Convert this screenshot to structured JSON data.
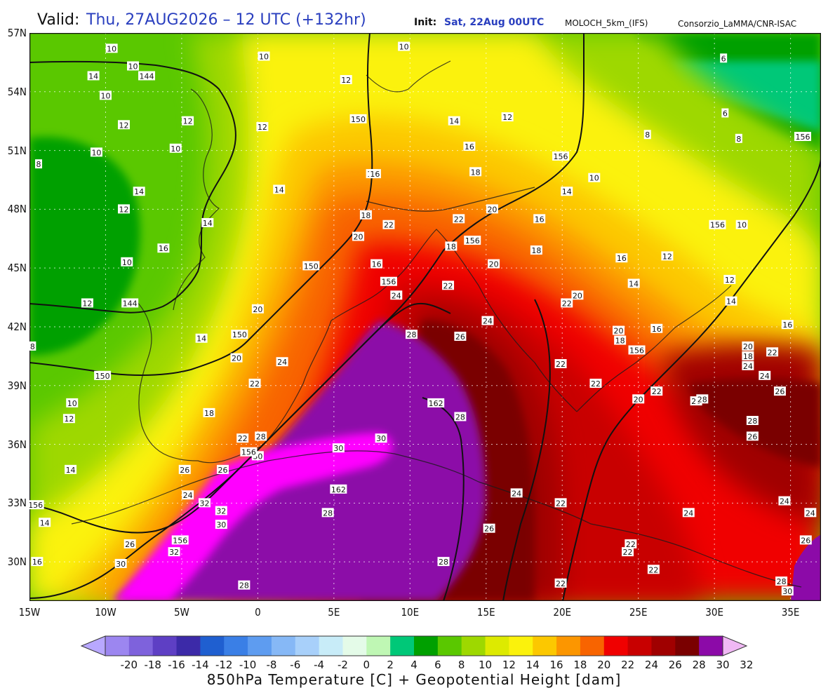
{
  "header": {
    "valid_label": "Valid:",
    "valid_value": "Thu, 27AUG2026 – 12 UTC (+132hr)",
    "init_label": "Init:",
    "init_value": "Sat, 22Aug 00UTC",
    "model": "MOLOCH_5km_(IFS)",
    "credit": "Consorzio_LaMMA/CNR-ISAC"
  },
  "axes": {
    "lat_labels": [
      "57N",
      "54N",
      "51N",
      "48N",
      "45N",
      "42N",
      "39N",
      "36N",
      "33N",
      "30N"
    ],
    "lon_labels": [
      "15W",
      "10W",
      "5W",
      "0",
      "5E",
      "10E",
      "15E",
      "20E",
      "25E",
      "30E",
      "35E"
    ],
    "lat_range": [
      28,
      57
    ],
    "lon_range": [
      -15,
      37
    ]
  },
  "colorbar": {
    "labels": [
      "-20",
      "-18",
      "-16",
      "-14",
      "-12",
      "-10",
      "-8",
      "-6",
      "-4",
      "-2",
      "0",
      "2",
      "4",
      "6",
      "8",
      "10",
      "12",
      "14",
      "16",
      "18",
      "20",
      "22",
      "24",
      "26",
      "28",
      "30",
      "32"
    ],
    "colors": [
      "#b8a8ff",
      "#9c86f0",
      "#7e62dc",
      "#5e3fc4",
      "#3c2aa8",
      "#1f5fd0",
      "#3a7fe6",
      "#5e9cf0",
      "#86b8f6",
      "#a8d0fa",
      "#c8ecf8",
      "#e4fbe8",
      "#bff7b4",
      "#00c878",
      "#00a000",
      "#5ac800",
      "#9ed800",
      "#ddea00",
      "#fbf20c",
      "#fcc800",
      "#fc9600",
      "#f86400",
      "#f00000",
      "#c80000",
      "#a00000",
      "#7a0000",
      "#8c0aa8",
      "#ff00ff",
      "#f0b8f4"
    ],
    "caption": "850hPa Temperature [C] + Geopotential Height [dam]"
  },
  "map_labels": {
    "temperature_iso": [
      {
        "t": "10",
        "lon": -9.6,
        "lat": 56.2
      },
      {
        "t": "10",
        "lon": -8.2,
        "lat": 55.3
      },
      {
        "t": "14",
        "lon": -10.8,
        "lat": 54.8
      },
      {
        "t": "10",
        "lon": -10.0,
        "lat": 53.8
      },
      {
        "t": "12",
        "lon": -8.8,
        "lat": 52.3
      },
      {
        "t": "10",
        "lon": -10.6,
        "lat": 50.9
      },
      {
        "t": "8",
        "lon": -14.4,
        "lat": 50.3
      },
      {
        "t": "14",
        "lon": -7.8,
        "lat": 48.9
      },
      {
        "t": "12",
        "lon": -8.8,
        "lat": 48.0
      },
      {
        "t": "16",
        "lon": -6.2,
        "lat": 46.0
      },
      {
        "t": "10",
        "lon": -8.6,
        "lat": 45.3
      },
      {
        "t": "12",
        "lon": -11.2,
        "lat": 43.2
      },
      {
        "t": "8",
        "lon": -14.8,
        "lat": 41.0
      },
      {
        "t": "10",
        "lon": -12.2,
        "lat": 38.1
      },
      {
        "t": "12",
        "lon": -12.4,
        "lat": 37.3
      },
      {
        "t": "14",
        "lon": -12.3,
        "lat": 34.7
      },
      {
        "t": "14",
        "lon": -14.0,
        "lat": 32.0
      },
      {
        "t": "16",
        "lon": -14.5,
        "lat": 30.0
      },
      {
        "t": "18",
        "lon": -3.2,
        "lat": 37.6
      },
      {
        "t": "20",
        "lon": -1.4,
        "lat": 40.4
      },
      {
        "t": "22",
        "lon": -0.2,
        "lat": 39.1
      },
      {
        "t": "24",
        "lon": 1.6,
        "lat": 40.2
      },
      {
        "t": "22",
        "lon": -1.0,
        "lat": 36.3
      },
      {
        "t": "28",
        "lon": 0.2,
        "lat": 36.4
      },
      {
        "t": "30",
        "lon": 5.3,
        "lat": 35.8
      },
      {
        "t": "30",
        "lon": 8.1,
        "lat": 36.3
      },
      {
        "t": "30",
        "lon": 0.0,
        "lat": 35.4
      },
      {
        "t": "26",
        "lon": -2.3,
        "lat": 34.7
      },
      {
        "t": "26",
        "lon": -4.8,
        "lat": 34.7
      },
      {
        "t": "24",
        "lon": -4.6,
        "lat": 33.4
      },
      {
        "t": "32",
        "lon": -3.5,
        "lat": 33.0
      },
      {
        "t": "32",
        "lon": -2.4,
        "lat": 32.6
      },
      {
        "t": "30",
        "lon": -2.4,
        "lat": 31.9
      },
      {
        "t": "26",
        "lon": -8.4,
        "lat": 30.9
      },
      {
        "t": "32",
        "lon": -5.5,
        "lat": 30.5
      },
      {
        "t": "30",
        "lon": -9.0,
        "lat": 29.9
      },
      {
        "t": "28",
        "lon": -0.9,
        "lat": 28.8
      },
      {
        "t": "28",
        "lon": 4.6,
        "lat": 32.5
      },
      {
        "t": "28",
        "lon": 12.2,
        "lat": 30.0
      },
      {
        "t": "26",
        "lon": 15.2,
        "lat": 31.7
      },
      {
        "t": "24",
        "lon": 17.0,
        "lat": 33.5
      },
      {
        "t": "22",
        "lon": 19.9,
        "lat": 33.0
      },
      {
        "t": "22",
        "lon": 19.9,
        "lat": 28.9
      },
      {
        "t": "22",
        "lon": 24.3,
        "lat": 30.5
      },
      {
        "t": "22",
        "lon": 24.5,
        "lat": 30.9
      },
      {
        "t": "22",
        "lon": 26.0,
        "lat": 29.6
      },
      {
        "t": "24",
        "lon": 28.3,
        "lat": 32.5
      },
      {
        "t": "24",
        "lon": 34.6,
        "lat": 33.1
      },
      {
        "t": "24",
        "lon": 36.3,
        "lat": 32.5
      },
      {
        "t": "26",
        "lon": 36.0,
        "lat": 31.1
      },
      {
        "t": "28",
        "lon": 34.4,
        "lat": 29.0
      },
      {
        "t": "30",
        "lon": 34.8,
        "lat": 28.5
      },
      {
        "t": "28",
        "lon": 13.3,
        "lat": 37.4
      },
      {
        "t": "28",
        "lon": 10.1,
        "lat": 41.6
      },
      {
        "t": "26",
        "lon": 13.3,
        "lat": 41.5
      },
      {
        "t": "24",
        "lon": 15.1,
        "lat": 42.3
      },
      {
        "t": "24",
        "lon": 9.1,
        "lat": 43.6
      },
      {
        "t": "22",
        "lon": 12.5,
        "lat": 44.1
      },
      {
        "t": "20",
        "lon": 15.5,
        "lat": 45.2
      },
      {
        "t": "18",
        "lon": 12.7,
        "lat": 46.1
      },
      {
        "t": "16",
        "lon": 7.8,
        "lat": 45.2
      },
      {
        "t": "20",
        "lon": 6.6,
        "lat": 46.6
      },
      {
        "t": "18",
        "lon": 7.1,
        "lat": 47.7
      },
      {
        "t": "22",
        "lon": 8.6,
        "lat": 47.2
      },
      {
        "t": "16",
        "lon": 7.5,
        "lat": 49.8
      },
      {
        "t": "14",
        "lon": 12.9,
        "lat": 52.5
      },
      {
        "t": "16",
        "lon": 13.9,
        "lat": 51.2
      },
      {
        "t": "18",
        "lon": 14.3,
        "lat": 49.9
      },
      {
        "t": "20",
        "lon": 15.4,
        "lat": 48.0
      },
      {
        "t": "22",
        "lon": 13.2,
        "lat": 47.5
      },
      {
        "t": "16",
        "lon": 18.5,
        "lat": 47.5
      },
      {
        "t": "18",
        "lon": 18.3,
        "lat": 45.9
      },
      {
        "t": "20",
        "lon": 21.0,
        "lat": 43.6
      },
      {
        "t": "22",
        "lon": 20.3,
        "lat": 43.2
      },
      {
        "t": "16",
        "lon": 23.9,
        "lat": 45.5
      },
      {
        "t": "12",
        "lon": 26.9,
        "lat": 45.6
      },
      {
        "t": "14",
        "lon": 24.7,
        "lat": 44.2
      },
      {
        "t": "16",
        "lon": 26.2,
        "lat": 41.9
      },
      {
        "t": "20",
        "lon": 23.7,
        "lat": 41.8
      },
      {
        "t": "18",
        "lon": 23.8,
        "lat": 41.3
      },
      {
        "t": "22",
        "lon": 22.2,
        "lat": 39.1
      },
      {
        "t": "22",
        "lon": 19.9,
        "lat": 40.1
      },
      {
        "t": "20",
        "lon": 25.0,
        "lat": 38.3
      },
      {
        "t": "22",
        "lon": 26.2,
        "lat": 38.7
      },
      {
        "t": "26",
        "lon": 28.8,
        "lat": 38.2
      },
      {
        "t": "28",
        "lon": 29.2,
        "lat": 38.3
      },
      {
        "t": "28",
        "lon": 32.5,
        "lat": 37.2
      },
      {
        "t": "26",
        "lon": 32.5,
        "lat": 36.4
      },
      {
        "t": "26",
        "lon": 34.3,
        "lat": 38.7
      },
      {
        "t": "24",
        "lon": 33.3,
        "lat": 39.5
      },
      {
        "t": "18",
        "lon": 32.2,
        "lat": 40.5
      },
      {
        "t": "24",
        "lon": 32.2,
        "lat": 40.0
      },
      {
        "t": "20",
        "lon": 32.2,
        "lat": 41.0
      },
      {
        "t": "22",
        "lon": 33.8,
        "lat": 40.7
      },
      {
        "t": "16",
        "lon": 34.8,
        "lat": 42.1
      },
      {
        "t": "14",
        "lon": 31.1,
        "lat": 43.3
      },
      {
        "t": "12",
        "lon": 31.0,
        "lat": 44.4
      },
      {
        "t": "10",
        "lon": 31.8,
        "lat": 47.2
      },
      {
        "t": "10",
        "lon": 22.1,
        "lat": 49.6
      },
      {
        "t": "14",
        "lon": 20.3,
        "lat": 48.9
      },
      {
        "t": "12",
        "lon": 16.4,
        "lat": 52.7
      },
      {
        "t": "8",
        "lon": 25.6,
        "lat": 51.8
      },
      {
        "t": "8",
        "lon": 31.6,
        "lat": 51.6
      },
      {
        "t": "6",
        "lon": 30.7,
        "lat": 52.9
      },
      {
        "t": "6",
        "lon": 30.6,
        "lat": 55.7
      },
      {
        "t": "10",
        "lon": 9.6,
        "lat": 56.3
      },
      {
        "t": "12",
        "lon": 5.8,
        "lat": 54.6
      },
      {
        "t": "10",
        "lon": -5.4,
        "lat": 51.1
      },
      {
        "t": "12",
        "lon": -4.6,
        "lat": 52.5
      },
      {
        "t": "14",
        "lon": -3.3,
        "lat": 47.3
      },
      {
        "t": "14",
        "lon": -3.7,
        "lat": 41.4
      },
      {
        "t": "20",
        "lon": 0.0,
        "lat": 42.9
      },
      {
        "t": "16",
        "lon": 7.7,
        "lat": 49.8
      },
      {
        "t": "14",
        "lon": 1.4,
        "lat": 49.0
      },
      {
        "t": "12",
        "lon": 0.3,
        "lat": 52.2
      },
      {
        "t": "10",
        "lon": 0.4,
        "lat": 55.8
      }
    ],
    "geopotential_iso": [
      {
        "t": "144",
        "lon": -7.3,
        "lat": 54.8
      },
      {
        "t": "144",
        "lon": -8.4,
        "lat": 43.2
      },
      {
        "t": "150",
        "lon": -10.2,
        "lat": 39.5
      },
      {
        "t": "150",
        "lon": -1.2,
        "lat": 41.6
      },
      {
        "t": "150",
        "lon": 3.5,
        "lat": 45.1
      },
      {
        "t": "150",
        "lon": 6.6,
        "lat": 52.6
      },
      {
        "t": "156",
        "lon": 19.9,
        "lat": 50.7
      },
      {
        "t": "156",
        "lon": 14.1,
        "lat": 46.4
      },
      {
        "t": "156",
        "lon": 8.6,
        "lat": 44.3
      },
      {
        "t": "156",
        "lon": 24.9,
        "lat": 40.8
      },
      {
        "t": "156",
        "lon": 30.2,
        "lat": 47.2
      },
      {
        "t": "156",
        "lon": 35.8,
        "lat": 51.7
      },
      {
        "t": "156",
        "lon": -0.6,
        "lat": 35.6
      },
      {
        "t": "156",
        "lon": -5.1,
        "lat": 31.1
      },
      {
        "t": "156",
        "lon": -14.6,
        "lat": 32.9
      },
      {
        "t": "162",
        "lon": 11.7,
        "lat": 38.1
      },
      {
        "t": "162",
        "lon": 5.3,
        "lat": 33.7
      }
    ]
  }
}
